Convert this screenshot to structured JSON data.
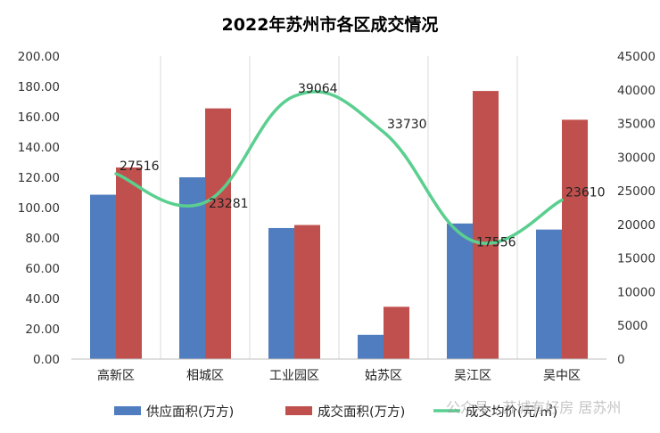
{
  "chart_data": {
    "type": "bar",
    "title": "2022年苏州市各区成交情况",
    "categories": [
      "高新区",
      "相城区",
      "工业园区",
      "姑苏区",
      "吴江区",
      "吴中区"
    ],
    "series": [
      {
        "name": "供应面积(万方)",
        "type": "bar",
        "axis": "left",
        "color": "#4F7DBF",
        "values": [
          108.5,
          120.0,
          86.5,
          16.0,
          89.5,
          85.5
        ]
      },
      {
        "name": "成交面积(万方)",
        "type": "bar",
        "axis": "left",
        "color": "#C0504D",
        "values": [
          126.5,
          165.5,
          88.5,
          34.5,
          177.0,
          158.0
        ]
      },
      {
        "name": "成交均价(元/㎡)",
        "type": "line",
        "axis": "right",
        "color": "#5ACF8F",
        "values": [
          27516,
          23281,
          39064,
          33730,
          17556,
          23610
        ],
        "labels": [
          "27516",
          "23281",
          "39064",
          "33730",
          "17556",
          "23610"
        ]
      }
    ],
    "y_left": {
      "min": 0,
      "max": 200,
      "step": 20,
      "ticks": [
        "0.00",
        "20.00",
        "40.00",
        "60.00",
        "80.00",
        "100.00",
        "120.00",
        "140.00",
        "160.00",
        "180.00",
        "200.00"
      ]
    },
    "y_right": {
      "min": 0,
      "max": 45000,
      "step": 5000,
      "ticks": [
        "0",
        "5000",
        "10000",
        "15000",
        "20000",
        "25000",
        "30000",
        "35000",
        "40000",
        "45000"
      ]
    },
    "grid": "vertical",
    "legend": "bottom"
  },
  "watermark": "公众号 · 苏城有好房 居苏州"
}
